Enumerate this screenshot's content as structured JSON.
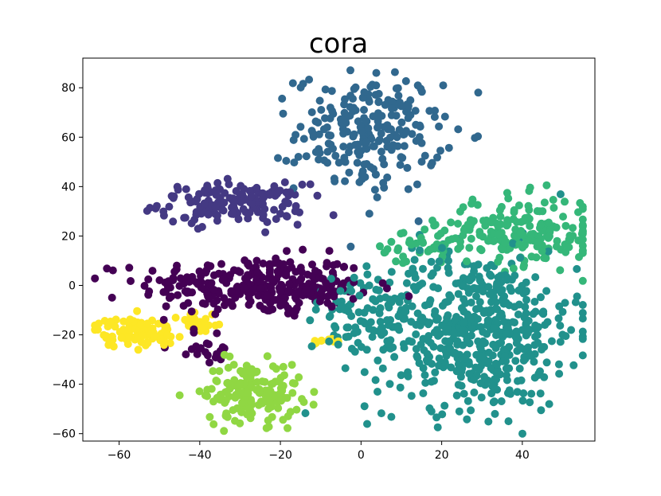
{
  "chart_data": {
    "type": "scatter",
    "title": "cora",
    "xlabel": "",
    "ylabel": "",
    "xlim": [
      -69,
      58
    ],
    "ylim": [
      -63,
      92
    ],
    "xticks": [
      -60,
      -40,
      -20,
      0,
      20,
      40
    ],
    "yticks": [
      -60,
      -40,
      -20,
      0,
      20,
      40,
      60,
      80
    ],
    "grid": false,
    "legend": "none",
    "series": [
      {
        "color": "#440154",
        "clusters": [
          {
            "cx": -27,
            "cy": 0,
            "sx": 14,
            "sy": 6,
            "n": 260
          },
          {
            "cx": -12,
            "cy": -3,
            "sx": 6,
            "sy": 4,
            "n": 50
          },
          {
            "cx": -38,
            "cy": -25,
            "sx": 4,
            "sy": 4,
            "n": 20
          }
        ]
      },
      {
        "color": "#443983",
        "clusters": [
          {
            "cx": -32,
            "cy": 33,
            "sx": 9,
            "sy": 4,
            "n": 160
          }
        ]
      },
      {
        "color": "#31688e",
        "clusters": [
          {
            "cx": 2,
            "cy": 62,
            "sx": 9,
            "sy": 12,
            "n": 230
          }
        ]
      },
      {
        "color": "#21918c",
        "clusters": [
          {
            "cx": 28,
            "cy": -18,
            "sx": 13,
            "sy": 16,
            "n": 560
          },
          {
            "cx": 0,
            "cy": -10,
            "sx": 7,
            "sy": 6,
            "n": 60
          }
        ]
      },
      {
        "color": "#35b779",
        "clusters": [
          {
            "cx": 40,
            "cy": 22,
            "sx": 10,
            "sy": 7,
            "n": 200
          },
          {
            "cx": 15,
            "cy": 15,
            "sx": 6,
            "sy": 4,
            "n": 40
          }
        ]
      },
      {
        "color": "#90d743",
        "clusters": [
          {
            "cx": -27,
            "cy": -43,
            "sx": 6,
            "sy": 6,
            "n": 160
          }
        ]
      },
      {
        "color": "#fde725",
        "clusters": [
          {
            "cx": -56,
            "cy": -19,
            "sx": 5,
            "sy": 3,
            "n": 90
          },
          {
            "cx": -40,
            "cy": -15,
            "sx": 3,
            "sy": 3,
            "n": 25
          },
          {
            "cx": -9,
            "cy": -23,
            "sx": 2,
            "sy": 1,
            "n": 12
          }
        ]
      }
    ]
  }
}
